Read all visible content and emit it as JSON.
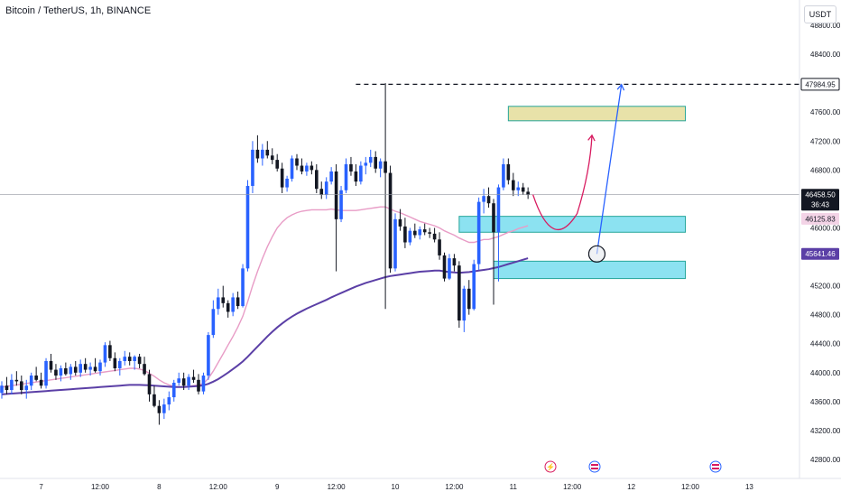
{
  "header": {
    "symbol_title": "Bitcoin / TetherUS, 1h, BINANCE",
    "unit": "USDT"
  },
  "colors": {
    "up_candle": "#2962ff",
    "down_candle": "#131722",
    "ma_fast": "#e89cc6",
    "ma_slow": "#5b3fa6",
    "support_zone": "#7fdff0",
    "support_border": "#26a69a",
    "target_zone": "#e6dfa0",
    "target_border": "#26a69a",
    "path_short": "#d81b60",
    "path_long": "#2962ff",
    "price_label_current": "#131722",
    "price_label_fast": "#e89cc6",
    "price_label_slow": "#5b3fa6"
  },
  "chart_data": {
    "type": "candlestick",
    "ylim": [
      42800,
      48800
    ],
    "y_ticks": [
      {
        "value": 48800,
        "label": "48800.00"
      },
      {
        "value": 48400,
        "label": "48400.00"
      },
      {
        "value": 47600,
        "label": "47600.00"
      },
      {
        "value": 47200,
        "label": "47200.00"
      },
      {
        "value": 46800,
        "label": "46800.00"
      },
      {
        "value": 46000,
        "label": "46000.00"
      },
      {
        "value": 45200,
        "label": "45200.00"
      },
      {
        "value": 44800,
        "label": "44800.00"
      },
      {
        "value": 44400,
        "label": "44400.00"
      },
      {
        "value": 44000,
        "label": "44000.00"
      },
      {
        "value": 43600,
        "label": "43600.00"
      },
      {
        "value": 43200,
        "label": "43200.00"
      },
      {
        "value": 42800,
        "label": "42800.00"
      }
    ],
    "x_ticks": [
      {
        "index": 8,
        "label": "7"
      },
      {
        "index": 20,
        "label": "12:00"
      },
      {
        "index": 32,
        "label": "8"
      },
      {
        "index": 44,
        "label": "12:00"
      },
      {
        "index": 56,
        "label": "9"
      },
      {
        "index": 68,
        "label": "12:00"
      },
      {
        "index": 80,
        "label": "10"
      },
      {
        "index": 92,
        "label": "12:00"
      },
      {
        "index": 104,
        "label": "11"
      },
      {
        "index": 116,
        "label": "12:00"
      },
      {
        "index": 128,
        "label": "12"
      },
      {
        "index": 140,
        "label": "12:00"
      },
      {
        "index": 152,
        "label": "13"
      }
    ],
    "candles": [
      [
        43720,
        43880,
        43640,
        43820
      ],
      [
        43820,
        43940,
        43700,
        43760
      ],
      [
        43760,
        43980,
        43700,
        43900
      ],
      [
        43900,
        44020,
        43820,
        43880
      ],
      [
        43880,
        43960,
        43700,
        43760
      ],
      [
        43760,
        43900,
        43640,
        43820
      ],
      [
        43820,
        44000,
        43760,
        43960
      ],
      [
        43960,
        44080,
        43880,
        43900
      ],
      [
        43900,
        44000,
        43780,
        43820
      ],
      [
        43820,
        44200,
        43780,
        44160
      ],
      [
        44160,
        44260,
        44000,
        44040
      ],
      [
        44040,
        44120,
        43900,
        43960
      ],
      [
        43960,
        44100,
        43880,
        44060
      ],
      [
        44060,
        44140,
        43960,
        43980
      ],
      [
        43980,
        44120,
        43900,
        44080
      ],
      [
        44080,
        44160,
        43960,
        44000
      ],
      [
        44000,
        44180,
        43940,
        44120
      ],
      [
        44120,
        44200,
        44000,
        44040
      ],
      [
        44040,
        44140,
        43960,
        44080
      ],
      [
        44080,
        44200,
        44000,
        44020
      ],
      [
        44020,
        44180,
        43960,
        44140
      ],
      [
        44140,
        44420,
        44080,
        44380
      ],
      [
        44380,
        44440,
        44160,
        44200
      ],
      [
        44200,
        44280,
        44020,
        44060
      ],
      [
        44060,
        44200,
        43960,
        44160
      ],
      [
        44160,
        44300,
        44100,
        44220
      ],
      [
        44220,
        44280,
        44100,
        44160
      ],
      [
        44160,
        44240,
        44040,
        44220
      ],
      [
        44220,
        44260,
        44060,
        44120
      ],
      [
        44120,
        44220,
        43960,
        43980
      ],
      [
        43980,
        44040,
        43600,
        43700
      ],
      [
        43700,
        43820,
        43520,
        43540
      ],
      [
        43540,
        43620,
        43280,
        43440
      ],
      [
        43440,
        43640,
        43360,
        43560
      ],
      [
        43560,
        43740,
        43480,
        43660
      ],
      [
        43660,
        43900,
        43600,
        43860
      ],
      [
        43860,
        44000,
        43820,
        43920
      ],
      [
        43920,
        44000,
        43760,
        43820
      ],
      [
        43820,
        43980,
        43760,
        43940
      ],
      [
        43940,
        44040,
        43860,
        43900
      ],
      [
        43900,
        43980,
        43700,
        43740
      ],
      [
        43740,
        44000,
        43700,
        43960
      ],
      [
        43960,
        44560,
        43900,
        44520
      ],
      [
        44520,
        45000,
        44480,
        44880
      ],
      [
        44880,
        45160,
        44800,
        45040
      ],
      [
        45040,
        45200,
        44900,
        44960
      ],
      [
        44960,
        45000,
        44760,
        44840
      ],
      [
        44840,
        45100,
        44780,
        45040
      ],
      [
        45040,
        45120,
        44880,
        44920
      ],
      [
        44920,
        45500,
        44900,
        45440
      ],
      [
        45440,
        46660,
        45400,
        46580
      ],
      [
        46580,
        47200,
        46480,
        47080
      ],
      [
        47080,
        47280,
        46900,
        46960
      ],
      [
        46960,
        47160,
        46860,
        47080
      ],
      [
        47080,
        47200,
        46960,
        47000
      ],
      [
        47000,
        47100,
        46880,
        46940
      ],
      [
        46940,
        47020,
        46780,
        46820
      ],
      [
        46820,
        46900,
        46480,
        46560
      ],
      [
        46560,
        46720,
        46500,
        46680
      ],
      [
        46680,
        47000,
        46640,
        46960
      ],
      [
        46960,
        47020,
        46800,
        46860
      ],
      [
        46860,
        46960,
        46740,
        46780
      ],
      [
        46780,
        46900,
        46720,
        46860
      ],
      [
        46860,
        46920,
        46740,
        46800
      ],
      [
        46800,
        46880,
        46480,
        46540
      ],
      [
        46540,
        46640,
        46400,
        46460
      ],
      [
        46460,
        46700,
        46400,
        46640
      ],
      [
        46640,
        46840,
        46600,
        46780
      ],
      [
        46780,
        46880,
        45400,
        46120
      ],
      [
        46120,
        46580,
        46080,
        46520
      ],
      [
        46520,
        46960,
        46480,
        46880
      ],
      [
        46880,
        46980,
        46720,
        46780
      ],
      [
        46780,
        46880,
        46580,
        46640
      ],
      [
        46640,
        46920,
        46600,
        46860
      ],
      [
        46860,
        46980,
        46740,
        46900
      ],
      [
        46900,
        47080,
        46840,
        46980
      ],
      [
        46980,
        47060,
        46760,
        46820
      ],
      [
        46820,
        46960,
        46700,
        46920
      ],
      [
        46920,
        48000,
        44880,
        46760
      ],
      [
        46760,
        46860,
        45380,
        45440
      ],
      [
        45440,
        46200,
        45400,
        46120
      ],
      [
        46120,
        46260,
        45960,
        46020
      ],
      [
        46020,
        46140,
        45720,
        45800
      ],
      [
        45800,
        46000,
        45760,
        45960
      ],
      [
        45960,
        46060,
        45860,
        45900
      ],
      [
        45900,
        46020,
        45840,
        45980
      ],
      [
        45980,
        46060,
        45900,
        45940
      ],
      [
        45940,
        46000,
        45860,
        45920
      ],
      [
        45920,
        46000,
        45800,
        45840
      ],
      [
        45840,
        45940,
        45560,
        45620
      ],
      [
        45620,
        45660,
        45260,
        45300
      ],
      [
        45300,
        45640,
        45280,
        45580
      ],
      [
        45580,
        45640,
        45400,
        45480
      ],
      [
        45480,
        45540,
        44620,
        44720
      ],
      [
        44720,
        45200,
        44560,
        45160
      ],
      [
        45160,
        45280,
        44800,
        44880
      ],
      [
        44880,
        45560,
        44860,
        45500
      ],
      [
        45500,
        46420,
        45420,
        46360
      ],
      [
        46360,
        46540,
        46200,
        46440
      ],
      [
        46440,
        46560,
        46280,
        46340
      ],
      [
        46340,
        46400,
        44940,
        45940
      ],
      [
        45940,
        46600,
        45260,
        46560
      ],
      [
        46560,
        46960,
        46520,
        46880
      ],
      [
        46880,
        46960,
        46600,
        46660
      ],
      [
        46660,
        46760,
        46440,
        46520
      ],
      [
        46520,
        46640,
        46440,
        46560
      ],
      [
        46560,
        46620,
        46460,
        46500
      ],
      [
        46500,
        46560,
        46400,
        46460
      ]
    ],
    "ma_fast": [
      43800,
      43810,
      43820,
      43830,
      43840,
      43850,
      43860,
      43870,
      43880,
      43890,
      43900,
      43910,
      43920,
      43930,
      43940,
      43950,
      43960,
      43970,
      43980,
      43990,
      44000,
      44010,
      44020,
      44030,
      44040,
      44050,
      44060,
      44060,
      44050,
      44030,
      43990,
      43950,
      43900,
      43860,
      43830,
      43810,
      43800,
      43800,
      43810,
      43820,
      43830,
      43850,
      43920,
      44020,
      44140,
      44260,
      44380,
      44500,
      44630,
      44780,
      44980,
      45200,
      45400,
      45580,
      45740,
      45880,
      46000,
      46080,
      46140,
      46180,
      46210,
      46230,
      46240,
      46250,
      46250,
      46250,
      46250,
      46260,
      46250,
      46240,
      46240,
      46240,
      46240,
      46250,
      46260,
      46270,
      46280,
      46290,
      46290,
      46260,
      46230,
      46210,
      46180,
      46150,
      46120,
      46090,
      46070,
      46050,
      46030,
      46000,
      45960,
      45930,
      45900,
      45860,
      45830,
      45800,
      45800,
      45820,
      45840,
      45840,
      45860,
      45880,
      45910,
      45940,
      45960,
      45990,
      46010,
      46030
    ],
    "ma_slow": [
      43700,
      43705,
      43710,
      43715,
      43720,
      43725,
      43730,
      43735,
      43740,
      43745,
      43750,
      43755,
      43760,
      43765,
      43770,
      43775,
      43780,
      43785,
      43790,
      43795,
      43800,
      43805,
      43810,
      43815,
      43820,
      43825,
      43830,
      43830,
      43830,
      43828,
      43825,
      43820,
      43815,
      43810,
      43805,
      43800,
      43800,
      43802,
      43805,
      43810,
      43815,
      43825,
      43845,
      43875,
      43910,
      43955,
      44000,
      44050,
      44100,
      44155,
      44220,
      44290,
      44360,
      44430,
      44500,
      44565,
      44625,
      44680,
      44730,
      44775,
      44815,
      44850,
      44885,
      44915,
      44945,
      44975,
      45005,
      45040,
      45070,
      45100,
      45130,
      45160,
      45190,
      45215,
      45240,
      45260,
      45280,
      45300,
      45320,
      45335,
      45345,
      45355,
      45365,
      45375,
      45385,
      45395,
      45400,
      45405,
      45410,
      45410,
      45400,
      45390,
      45385,
      45380,
      45385,
      45390,
      45400,
      45410,
      45420,
      45430,
      45445,
      45460,
      45480,
      45500,
      45520,
      45540,
      45560,
      45580
    ],
    "zones": [
      {
        "name": "target",
        "i0": 103,
        "i1": 139,
        "top": 47680,
        "bottom": 47480
      },
      {
        "name": "support-upper",
        "i0": 93,
        "i1": 139,
        "top": 46160,
        "bottom": 45940
      },
      {
        "name": "support-lower",
        "i0": 100,
        "i1": 139,
        "top": 45540,
        "bottom": 45300
      }
    ],
    "levels": [
      {
        "name": "target-line",
        "value": 47984.95,
        "i0": 72,
        "label": "47984.95"
      },
      {
        "name": "current-price",
        "value": 46458.5,
        "label": "46458.50",
        "countdown": "36:43"
      },
      {
        "name": "ma-fast",
        "value": 46125.83,
        "label": "46125.83"
      },
      {
        "name": "ma-slow",
        "value": 45641.46,
        "label": "45641.46"
      }
    ],
    "paths": [
      {
        "name": "short-path",
        "points": [
          [
            108,
            46460
          ],
          [
            112,
            46020
          ],
          [
            117,
            46200
          ],
          [
            120,
            47280
          ]
        ]
      },
      {
        "name": "long-path",
        "points": [
          [
            121,
            45640
          ],
          [
            123,
            46800
          ],
          [
            126,
            47980
          ]
        ]
      }
    ],
    "markers": [
      {
        "name": "entry-circle",
        "i": 121,
        "value": 45640
      }
    ]
  }
}
